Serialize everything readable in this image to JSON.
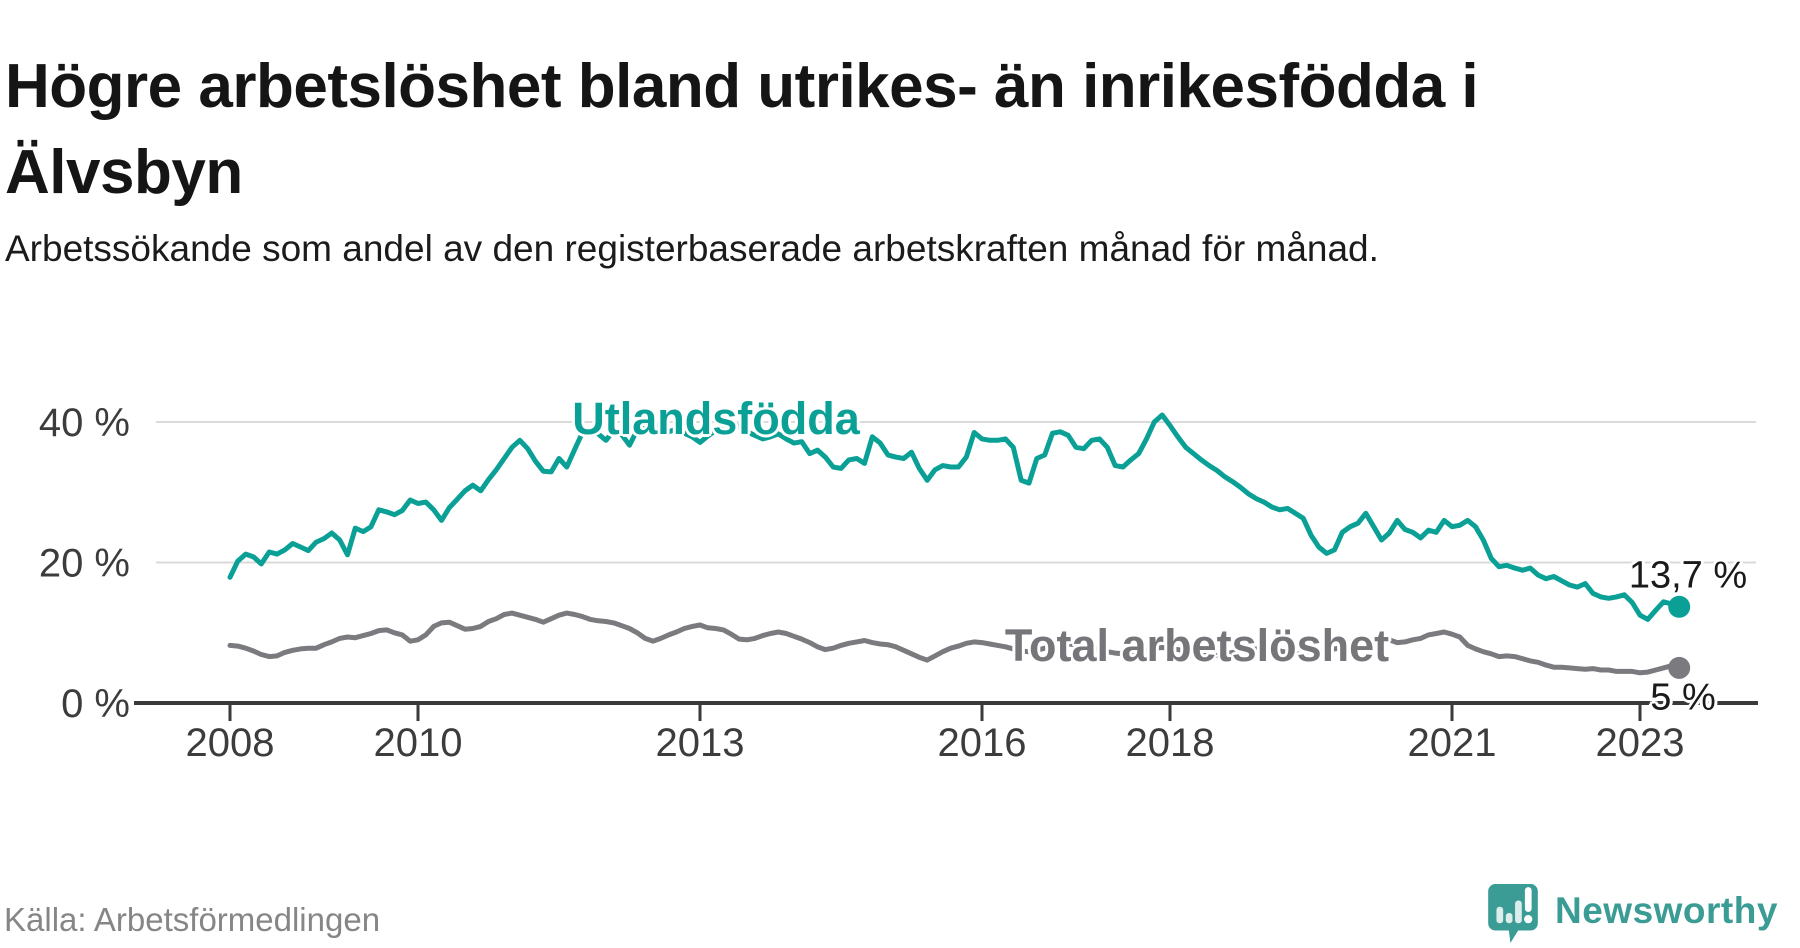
{
  "header": {
    "title": "Högre arbetslöshet bland utrikes- än inrikesfödda i Älvsbyn",
    "subtitle": "Arbetssökande som andel av den registerbaserade arbetskraften månad för månad."
  },
  "chart_data": {
    "type": "line",
    "unit": "%",
    "grid": true,
    "x_axis": {
      "start": "2008-01",
      "end": "2023-06",
      "ticks": [
        {
          "year": 2008,
          "label": "2008"
        },
        {
          "year": 2010,
          "label": "2010"
        },
        {
          "year": 2013,
          "label": "2013"
        },
        {
          "year": 2016,
          "label": "2016"
        },
        {
          "year": 2018,
          "label": "2018"
        },
        {
          "year": 2021,
          "label": "2021"
        },
        {
          "year": 2023,
          "label": "2023"
        }
      ]
    },
    "y_axis": {
      "ylim": [
        0,
        45
      ],
      "ticks": [
        {
          "value": 0,
          "label": "0 %"
        },
        {
          "value": 20,
          "label": "20 %"
        },
        {
          "value": 40,
          "label": "40 %"
        }
      ]
    },
    "series": [
      {
        "name": "Utlandsfödda",
        "color": "#0aa096",
        "end_label": "13,7 %",
        "end_value": 13.7,
        "values": [
          17.9,
          20.2,
          21.2,
          20.8,
          19.8,
          21.5,
          21.2,
          21.8,
          22.7,
          22.2,
          21.7,
          22.9,
          23.4,
          24.2,
          23.2,
          21.1,
          24.9,
          24.4,
          25.1,
          27.5,
          27.2,
          26.8,
          27.4,
          28.9,
          28.4,
          28.6,
          27.5,
          26.0,
          27.8,
          29.0,
          30.2,
          31.0,
          30.2,
          31.8,
          33.2,
          34.8,
          36.4,
          37.4,
          36.2,
          34.4,
          33.0,
          32.9,
          34.8,
          33.6,
          36.1,
          38.5,
          39.0,
          38.3,
          37.4,
          38.8,
          38.2,
          36.7,
          38.9,
          39.4,
          39.8,
          39.2,
          38.6,
          39.0,
          38.4,
          37.9,
          37.1,
          38.0,
          38.8,
          39.5,
          39.9,
          39.3,
          38.6,
          38.1,
          37.6,
          37.9,
          38.3,
          37.6,
          37.0,
          37.2,
          35.5,
          36.0,
          35.0,
          33.6,
          33.4,
          34.6,
          34.8,
          34.1,
          37.9,
          37.0,
          35.3,
          35.0,
          34.8,
          35.7,
          33.4,
          31.7,
          33.2,
          33.8,
          33.6,
          33.6,
          35.0,
          38.5,
          37.6,
          37.4,
          37.4,
          37.6,
          36.4,
          31.7,
          31.3,
          34.8,
          35.3,
          38.4,
          38.6,
          38.1,
          36.4,
          36.2,
          37.4,
          37.6,
          36.4,
          33.8,
          33.6,
          34.6,
          35.5,
          37.6,
          40.0,
          41.0,
          39.5,
          37.9,
          36.4,
          35.5,
          34.6,
          33.8,
          33.1,
          32.2,
          31.5,
          30.7,
          29.8,
          29.1,
          28.6,
          27.9,
          27.5,
          27.7,
          27.0,
          26.3,
          23.9,
          22.2,
          21.3,
          21.8,
          24.3,
          25.1,
          25.6,
          27.0,
          25.1,
          23.2,
          24.2,
          26.0,
          24.7,
          24.3,
          23.5,
          24.6,
          24.3,
          26.0,
          25.1,
          25.3,
          26.0,
          25.1,
          23.2,
          20.6,
          19.4,
          19.6,
          19.2,
          18.9,
          19.2,
          18.2,
          17.7,
          18.0,
          17.4,
          16.8,
          16.5,
          17.0,
          15.6,
          15.1,
          14.9,
          15.1,
          15.4,
          14.3,
          12.5,
          11.9,
          13.2,
          14.4,
          14.1,
          13.7
        ]
      },
      {
        "name": "Total arbetslöshet",
        "color": "#7b7b7f",
        "end_label": "5 %",
        "end_value": 5.0,
        "values": [
          8.2,
          8.1,
          7.8,
          7.4,
          6.9,
          6.6,
          6.7,
          7.2,
          7.5,
          7.7,
          7.8,
          7.8,
          8.3,
          8.7,
          9.2,
          9.4,
          9.3,
          9.6,
          9.9,
          10.3,
          10.4,
          10.0,
          9.7,
          8.8,
          9.0,
          9.7,
          10.9,
          11.4,
          11.5,
          11.0,
          10.5,
          10.6,
          10.9,
          11.6,
          12.0,
          12.6,
          12.8,
          12.5,
          12.2,
          11.9,
          11.5,
          12.0,
          12.5,
          12.8,
          12.6,
          12.3,
          11.9,
          11.7,
          11.6,
          11.4,
          11.0,
          10.6,
          10.0,
          9.2,
          8.8,
          9.2,
          9.7,
          10.1,
          10.6,
          10.9,
          11.1,
          10.7,
          10.6,
          10.4,
          9.8,
          9.1,
          9.0,
          9.2,
          9.6,
          9.9,
          10.1,
          9.9,
          9.5,
          9.1,
          8.6,
          8.0,
          7.6,
          7.8,
          8.2,
          8.5,
          8.7,
          8.9,
          8.6,
          8.4,
          8.3,
          8.0,
          7.5,
          7.0,
          6.5,
          6.1,
          6.7,
          7.3,
          7.8,
          8.1,
          8.5,
          8.7,
          8.6,
          8.4,
          8.2,
          8.0,
          7.7,
          7.4,
          7.3,
          7.5,
          7.8,
          8.0,
          8.2,
          8.4,
          8.3,
          8.1,
          7.9,
          7.6,
          7.3,
          7.1,
          7.0,
          7.2,
          7.4,
          7.6,
          7.8,
          7.9,
          7.8,
          7.6,
          7.4,
          7.1,
          6.9,
          6.7,
          6.8,
          7.0,
          7.2,
          7.4,
          7.5,
          7.7,
          7.8,
          7.6,
          7.4,
          7.2,
          7.0,
          6.9,
          7.0,
          7.2,
          7.4,
          7.7,
          7.9,
          8.1,
          8.2,
          8.4,
          8.6,
          8.5,
          9.0,
          8.6,
          8.7,
          9.0,
          9.2,
          9.7,
          9.9,
          10.1,
          9.8,
          9.4,
          8.2,
          7.7,
          7.3,
          7.0,
          6.6,
          6.7,
          6.6,
          6.3,
          6.0,
          5.8,
          5.4,
          5.1,
          5.1,
          5.0,
          4.9,
          4.8,
          4.9,
          4.7,
          4.7,
          4.5,
          4.5,
          4.5,
          4.3,
          4.4,
          4.7,
          5.0,
          5.3,
          5.0
        ]
      }
    ],
    "colors": {
      "axis": "#3a3a3a",
      "gridline": "#dadada",
      "tick_text": "#3c3c3c"
    }
  },
  "footer": {
    "source": "Källa: Arbetsförmedlingen",
    "brand": "Newsworthy",
    "brand_color": "#3a9c94"
  }
}
